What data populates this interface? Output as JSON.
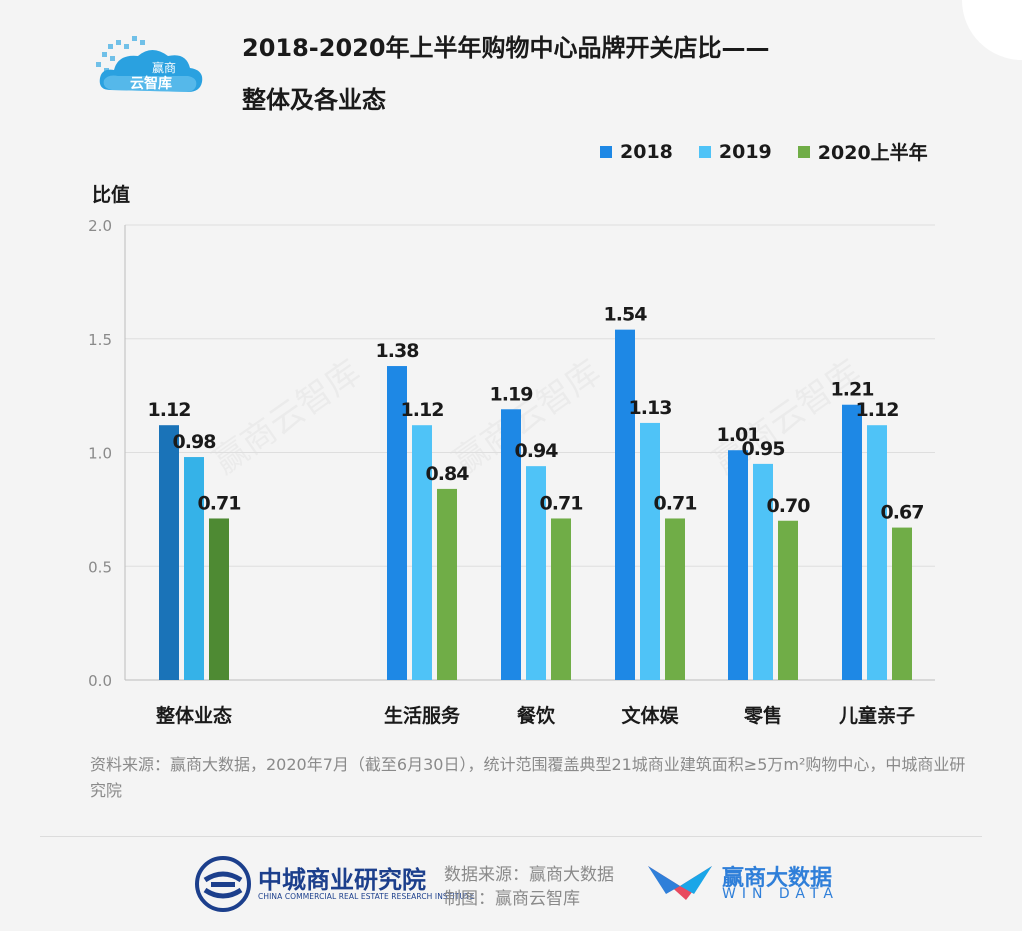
{
  "title_line1": "2018-2020年上半年购物中心品牌开关店比——",
  "title_line2": "整体及各业态",
  "brand_logo": {
    "line1": "赢商",
    "line2": "云智库"
  },
  "watermark_text": "赢商云智库",
  "ylabel": "比值",
  "colors": {
    "bg": "#f4f4f4",
    "s2018": "#1e88e5",
    "s2019": "#4fc3f7",
    "s2020": "#70ad47",
    "overall2018": "#1a73b8",
    "overall2019": "#35b2e8",
    "overall2020": "#4e8a33",
    "grid": "#dedede",
    "text": "#1a1a1a"
  },
  "legend": [
    {
      "label": "2018",
      "color": "#1e88e5"
    },
    {
      "label": "2019",
      "color": "#4fc3f7"
    },
    {
      "label": "2020上半年",
      "color": "#70ad47"
    }
  ],
  "chart_data": {
    "type": "bar",
    "title": "2018-2020年上半年购物中心品牌开关店比——整体及各业态",
    "ylabel": "比值",
    "ylim": [
      0,
      2.0
    ],
    "yticks": [
      "0.0",
      "0.5",
      "1.0",
      "1.5",
      "2.0"
    ],
    "grid": true,
    "legend_position": "top-right",
    "categories": [
      "整体业态",
      "生活服务",
      "餐饮",
      "文体娱",
      "零售",
      "儿童亲子"
    ],
    "series": [
      {
        "name": "2018",
        "values": [
          1.12,
          1.38,
          1.19,
          1.54,
          1.01,
          1.21
        ],
        "labels": [
          "1.12",
          "1.38",
          "1.19",
          "1.54",
          "1.01",
          "1.21"
        ]
      },
      {
        "name": "2019",
        "values": [
          0.98,
          1.12,
          0.94,
          1.13,
          0.95,
          1.12
        ],
        "labels": [
          "0.98",
          "1.12",
          "0.94",
          "1.13",
          "0.95",
          "1.12"
        ]
      },
      {
        "name": "2020上半年",
        "values": [
          0.71,
          0.84,
          0.71,
          0.71,
          0.7,
          0.67
        ],
        "labels": [
          "0.71",
          "0.84",
          "0.71",
          "0.71",
          "0.70",
          "0.67"
        ]
      }
    ]
  },
  "source_note": "资料来源：赢商大数据，2020年7月（截至6月30日），统计范围覆盖典型21城商业建筑面积≥5万m²购物中心，中城商业研究院",
  "footer": {
    "org_name_cn": "中城商业研究院",
    "org_name_en": "CHINA COMMERCIAL REAL ESTATE RESEARCH INSTITUTE",
    "data_source": "数据来源：赢商大数据",
    "credit": "制图：赢商云智库",
    "win_name_cn": "赢商大数据",
    "win_name_en": "WIN DATA"
  }
}
